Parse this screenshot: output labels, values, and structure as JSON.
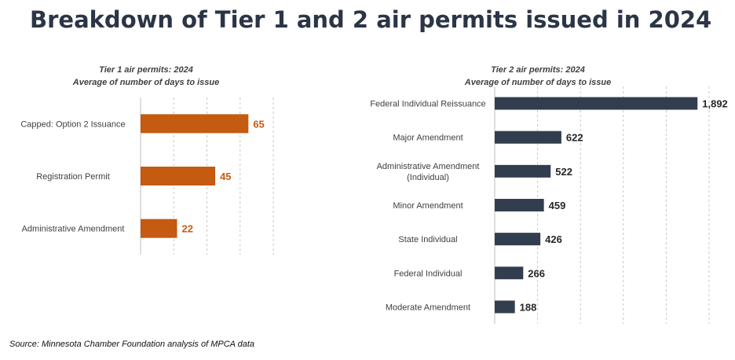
{
  "page": {
    "title": "Breakdown of Tier 1 and 2 air permits issued in 2024",
    "source": "Source: Minnesota Chamber Foundation analysis of MPCA data"
  },
  "colors": {
    "title": "#2b3546",
    "tier1_bar": "#c55a11",
    "tier2_bar": "#323e4f",
    "gridline": "#c8c8c8",
    "axis": "#bfbfbf",
    "label": "#404040"
  },
  "chart_data": [
    {
      "type": "bar",
      "orientation": "horizontal",
      "title": "Tier 1 air permits: 2024",
      "subtitle": "Average of number of days to issue",
      "categories": [
        "Capped: Option 2 Issuance",
        "Registration Permit",
        "Administrative Amendment"
      ],
      "values": [
        65,
        45,
        22
      ],
      "value_labels": [
        "65",
        "45",
        "22"
      ],
      "xlim": [
        0,
        80
      ],
      "grid": true
    },
    {
      "type": "bar",
      "orientation": "horizontal",
      "title": "Tier 2 air permits: 2024",
      "subtitle": "Average of number of days to issue",
      "categories": [
        [
          "Federal Individual Reissuance"
        ],
        [
          "Major Amendment"
        ],
        [
          "Administrative Amendment",
          "(Individual)"
        ],
        [
          "Minor Amendment"
        ],
        [
          "State Individual"
        ],
        [
          "Federal Individual"
        ],
        [
          "Moderate Amendment"
        ]
      ],
      "values": [
        1892,
        622,
        522,
        459,
        426,
        266,
        188
      ],
      "value_labels": [
        "1,892",
        "622",
        "522",
        "459",
        "426",
        "266",
        "188"
      ],
      "xlim": [
        0,
        2000
      ],
      "grid": true
    }
  ]
}
